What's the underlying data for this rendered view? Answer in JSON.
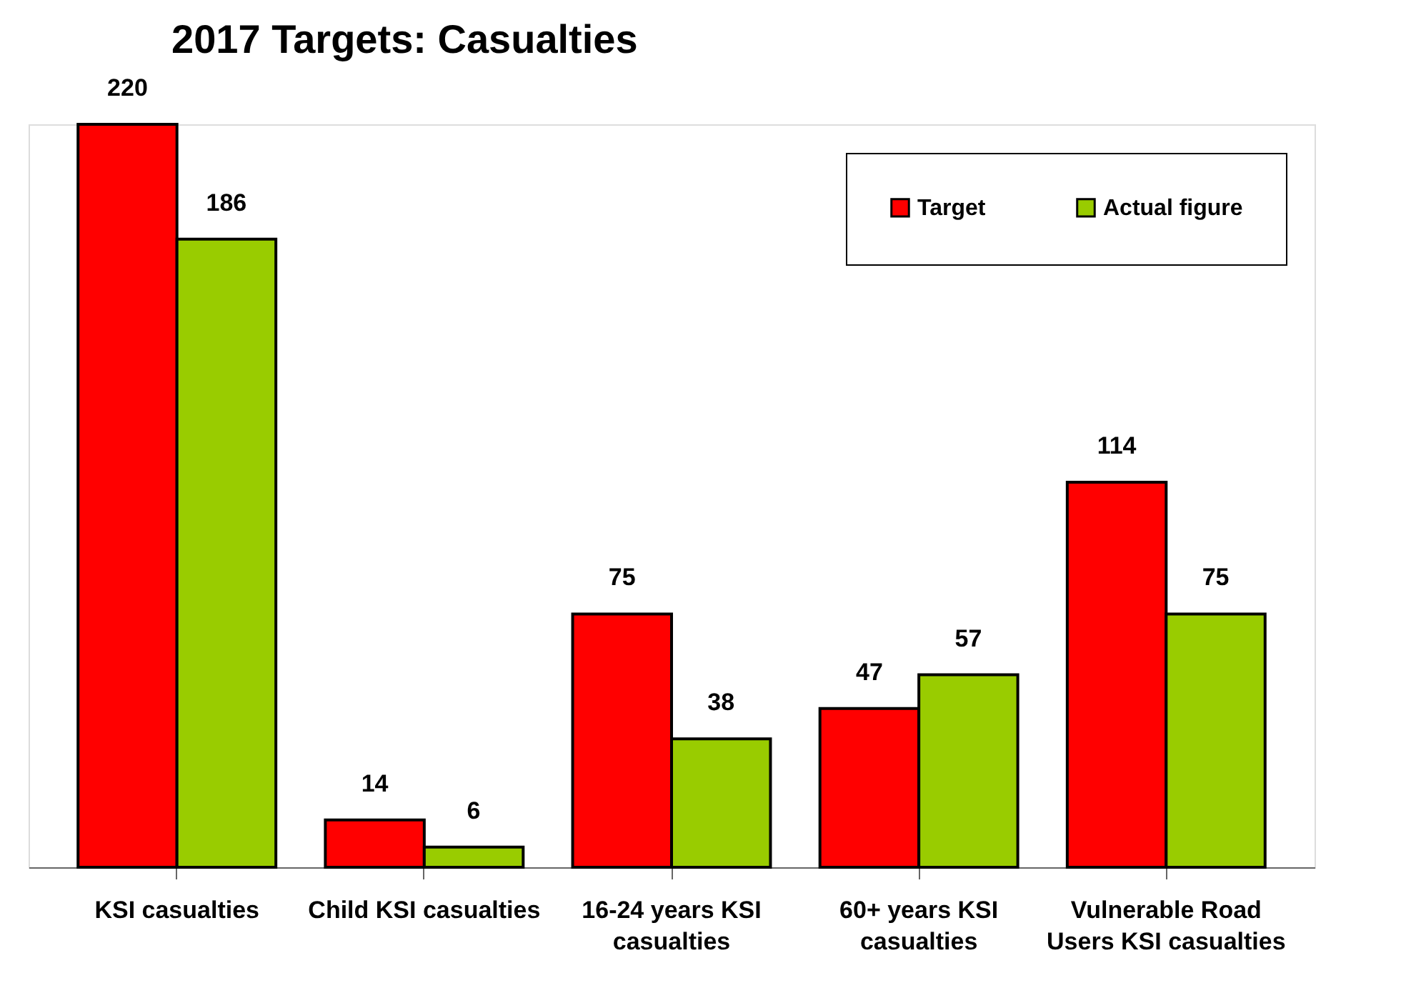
{
  "chart_data": {
    "type": "bar",
    "title": "2017 Targets: Casualties",
    "categories": [
      "KSI casualties",
      "Child KSI casualties",
      "16-24 years KSI casualties",
      "60+ years KSI casualties",
      "Vulnerable Road Users KSI casualties"
    ],
    "series": [
      {
        "name": "Target",
        "color": "#ff0000",
        "values": [
          220,
          14,
          75,
          47,
          114
        ]
      },
      {
        "name": "Actual figure",
        "color": "#99cc00",
        "values": [
          186,
          6,
          38,
          57,
          75
        ]
      }
    ],
    "data_labels": true,
    "legend": "top right",
    "grid": false
  }
}
